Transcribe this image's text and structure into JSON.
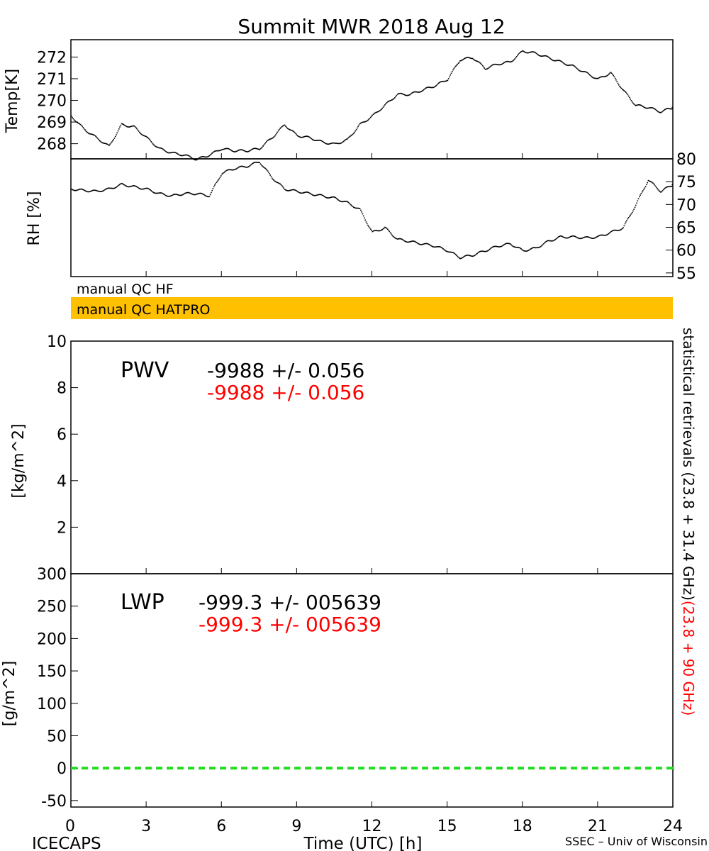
{
  "title": "Summit MWR 2018 Aug 12",
  "footer": {
    "left": "ICECAPS",
    "center": "Time (UTC) [h]",
    "right": "SSEC – Univ of Wisconsin"
  },
  "colors": {
    "qc_bar": "#FFC000",
    "lwp_line": "#22DD22",
    "secondary_text": "#FF0000"
  },
  "x_axis": {
    "range": [
      0,
      24
    ],
    "ticks": [
      "0",
      "3",
      "6",
      "9",
      "12",
      "15",
      "18",
      "21",
      "24"
    ]
  },
  "qc": {
    "hf_label": "manual QC HF",
    "hatpro_label": "manual QC HATPRO"
  },
  "side_label": {
    "part1": "statistical retrievals (23.8 + 31.4 GHz)",
    "part2": "(23.8 + 90 GHz)"
  },
  "chart_data": [
    {
      "type": "scatter",
      "ylabel": "Temp[K]",
      "ylim": [
        267.3,
        272.8
      ],
      "yticks": [
        "268",
        "269",
        "270",
        "271",
        "272"
      ],
      "series": [
        {
          "x": [
            0,
            0.5,
            1,
            1.5,
            2,
            2.5,
            3,
            3.5,
            4,
            4.5,
            5,
            5.5,
            6,
            6.5,
            7,
            7.5,
            8,
            8.5,
            9,
            9.5,
            10,
            10.5,
            11,
            11.5,
            12,
            12.5,
            13,
            13.5,
            14,
            14.5,
            15,
            15.5,
            16,
            16.5,
            17,
            17.5,
            18,
            18.5,
            19,
            19.5,
            20,
            20.5,
            21,
            21.5,
            22,
            22.5,
            23,
            23.5,
            24
          ],
          "y": [
            269.3,
            268.7,
            268.3,
            267.9,
            268.9,
            268.8,
            268.3,
            267.8,
            267.6,
            267.5,
            267.3,
            267.5,
            267.8,
            267.7,
            267.7,
            267.8,
            268.3,
            268.9,
            268.4,
            268.3,
            268.1,
            268.0,
            268.2,
            268.9,
            269.3,
            269.8,
            270.3,
            270.3,
            270.5,
            270.7,
            271.0,
            271.9,
            272.0,
            271.5,
            271.7,
            271.8,
            272.3,
            272.2,
            272.0,
            271.8,
            271.6,
            271.3,
            271.0,
            271.3,
            270.5,
            269.8,
            269.7,
            269.5,
            269.7
          ]
        }
      ]
    },
    {
      "type": "scatter",
      "ylabel": "RH [%]",
      "ylim": [
        54.2,
        80
      ],
      "yticks": [
        "55",
        "60",
        "65",
        "70",
        "75",
        "80"
      ],
      "series": [
        {
          "x": [
            0,
            0.5,
            1,
            1.5,
            2,
            2.5,
            3,
            3.5,
            4,
            4.5,
            5,
            5.5,
            6,
            6.5,
            7,
            7.5,
            8,
            8.5,
            9,
            9.5,
            10,
            10.5,
            11,
            11.5,
            12,
            12.5,
            13,
            13.5,
            14,
            14.5,
            15,
            15.5,
            16,
            16.5,
            17,
            17.5,
            18,
            18.5,
            19,
            19.5,
            20,
            20.5,
            21,
            21.5,
            22,
            22.5,
            23,
            23.5,
            24
          ],
          "y": [
            73.5,
            73.2,
            73.0,
            73.5,
            74.5,
            74.0,
            73.5,
            72.5,
            72.0,
            72.5,
            72.5,
            72.0,
            77.0,
            78.0,
            78.5,
            79.5,
            76.0,
            73.5,
            73.0,
            72.5,
            72.0,
            71.5,
            70.5,
            69.0,
            64.0,
            65.0,
            62.5,
            62.0,
            61.5,
            61.0,
            60.0,
            58.5,
            59.0,
            60.0,
            61.0,
            61.5,
            60.0,
            60.5,
            62.0,
            63.0,
            63.0,
            62.8,
            63.0,
            64.0,
            65.0,
            70.0,
            75.5,
            73.0,
            74.5
          ]
        }
      ]
    }
  ],
  "pwv": {
    "label": "PWV",
    "value_black": "-9988 +/- 0.056",
    "value_red": "-9988 +/- 0.056",
    "ylabel": "[kg/m^2]",
    "ylim": [
      0,
      10
    ],
    "yticks": [
      "0",
      "2",
      "4",
      "6",
      "8",
      "10"
    ]
  },
  "lwp": {
    "label": "LWP",
    "value_black": "-999.3 +/- 005639",
    "value_red": "-999.3 +/- 005639",
    "ylabel": "[g/m^2]",
    "ylim": [
      -60,
      300
    ],
    "yticks": [
      "-50",
      "0",
      "50",
      "100",
      "150",
      "200",
      "250",
      "300"
    ],
    "zero_line": 0
  }
}
